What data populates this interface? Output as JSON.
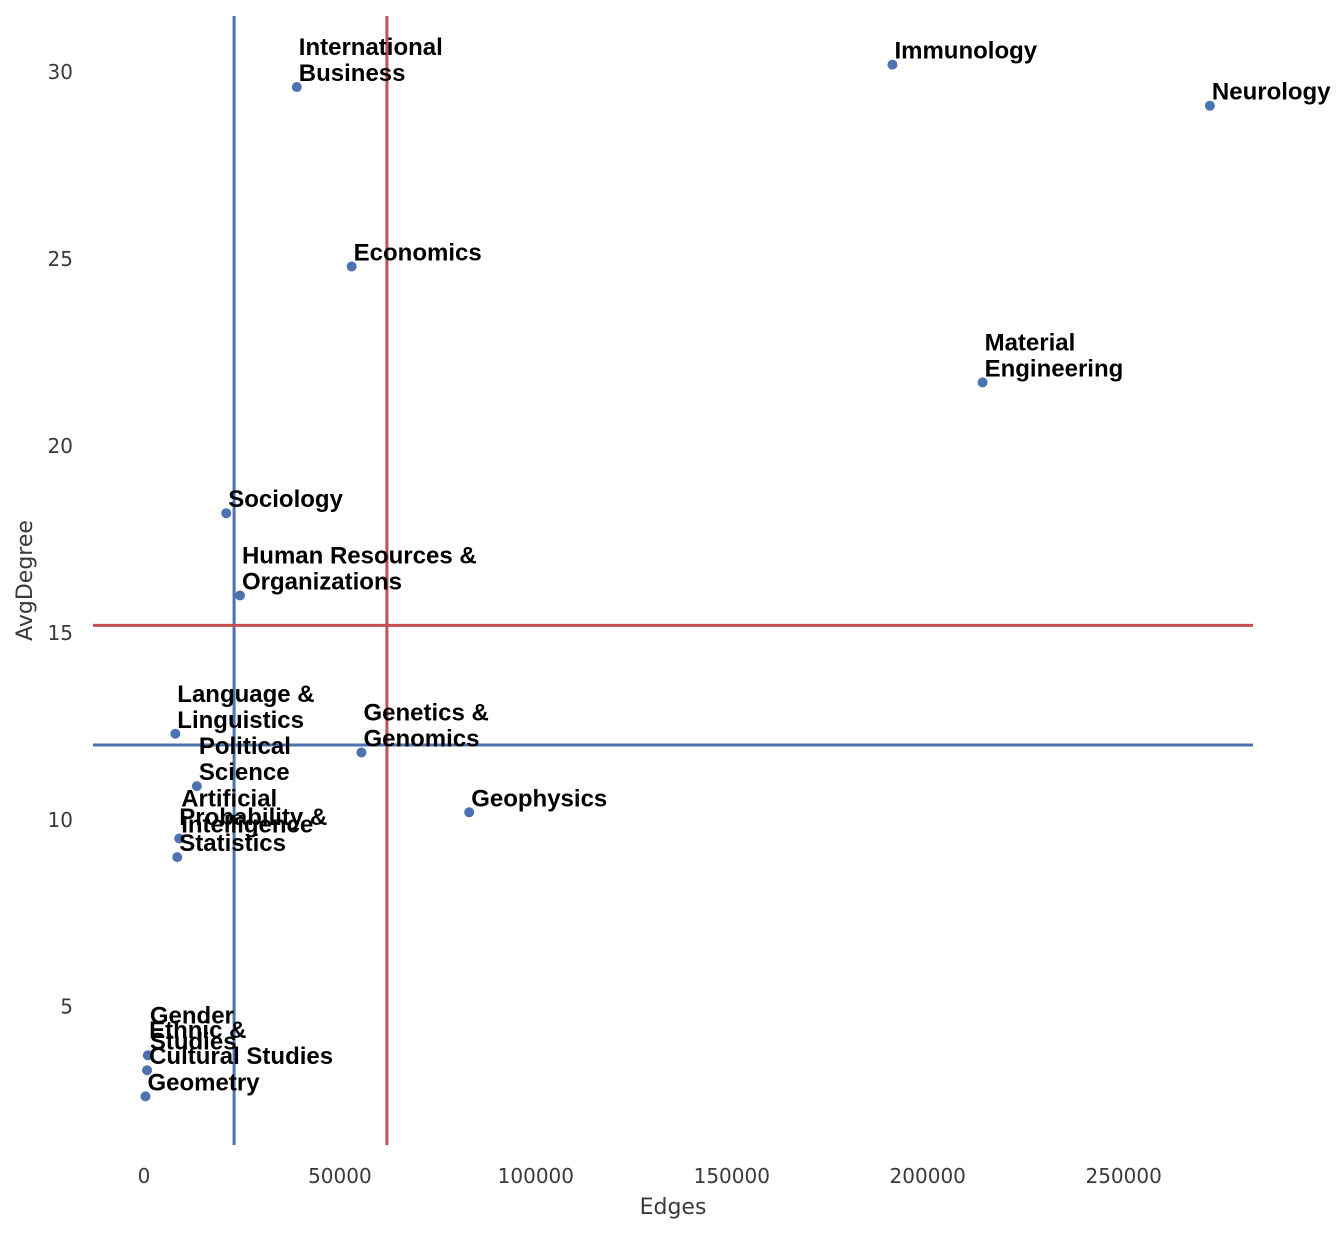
{
  "chart_data": {
    "type": "scatter",
    "title": "",
    "xlabel": "Edges",
    "ylabel": "AvgDegree",
    "xlim": [
      -13000,
      283000
    ],
    "ylim": [
      1.3,
      31.5
    ],
    "xticks": [
      0,
      50000,
      100000,
      150000,
      200000,
      250000
    ],
    "xtick_labels": [
      "0",
      "50000",
      "100000",
      "150000",
      "200000",
      "250000"
    ],
    "yticks": [
      5,
      10,
      15,
      20,
      25,
      30
    ],
    "ytick_labels": [
      "5",
      "10",
      "15",
      "20",
      "25",
      "30"
    ],
    "grid": false,
    "legend": "none",
    "point_color": "#4c72b0",
    "vlines": [
      {
        "x": 23000,
        "color": "#4c72b0"
      },
      {
        "x": 62000,
        "color": "#c44e52"
      }
    ],
    "hlines": [
      {
        "y": 15.2,
        "color": "#c44e52"
      },
      {
        "y": 12.0,
        "color": "#4c72b0"
      }
    ],
    "points": [
      {
        "label": [
          "International",
          "Business"
        ],
        "x": 39000,
        "y": 29.6
      },
      {
        "label": [
          "Immunology"
        ],
        "x": 191000,
        "y": 30.2
      },
      {
        "label": [
          "Neurology"
        ],
        "x": 272000,
        "y": 29.1
      },
      {
        "label": [
          "Economics"
        ],
        "x": 53000,
        "y": 24.8
      },
      {
        "label": [
          "Material",
          "Engineering"
        ],
        "x": 214000,
        "y": 21.7
      },
      {
        "label": [
          "Sociology"
        ],
        "x": 21000,
        "y": 18.2
      },
      {
        "label": [
          "Human Resources &",
          "Organizations"
        ],
        "x": 24500,
        "y": 16.0
      },
      {
        "label": [
          "Language &",
          "Linguistics"
        ],
        "x": 8000,
        "y": 12.3
      },
      {
        "label": [
          "Genetics &",
          "Genomics"
        ],
        "x": 55500,
        "y": 11.8
      },
      {
        "label": [
          "Political",
          "Science"
        ],
        "x": 13500,
        "y": 10.9
      },
      {
        "label": [
          "Geophysics"
        ],
        "x": 83000,
        "y": 10.2
      },
      {
        "label": [
          "Artificial",
          "Intelligence"
        ],
        "x": 9000,
        "y": 9.5
      },
      {
        "label": [
          "Probability &",
          "Statistics"
        ],
        "x": 8500,
        "y": 9.0
      },
      {
        "label": [
          "Gender",
          "Studies"
        ],
        "x": 1000,
        "y": 3.7
      },
      {
        "label": [
          "Ethnic &",
          "Cultural Studies"
        ],
        "x": 800,
        "y": 3.3
      },
      {
        "label": [
          "Geometry"
        ],
        "x": 400,
        "y": 2.6
      }
    ]
  }
}
